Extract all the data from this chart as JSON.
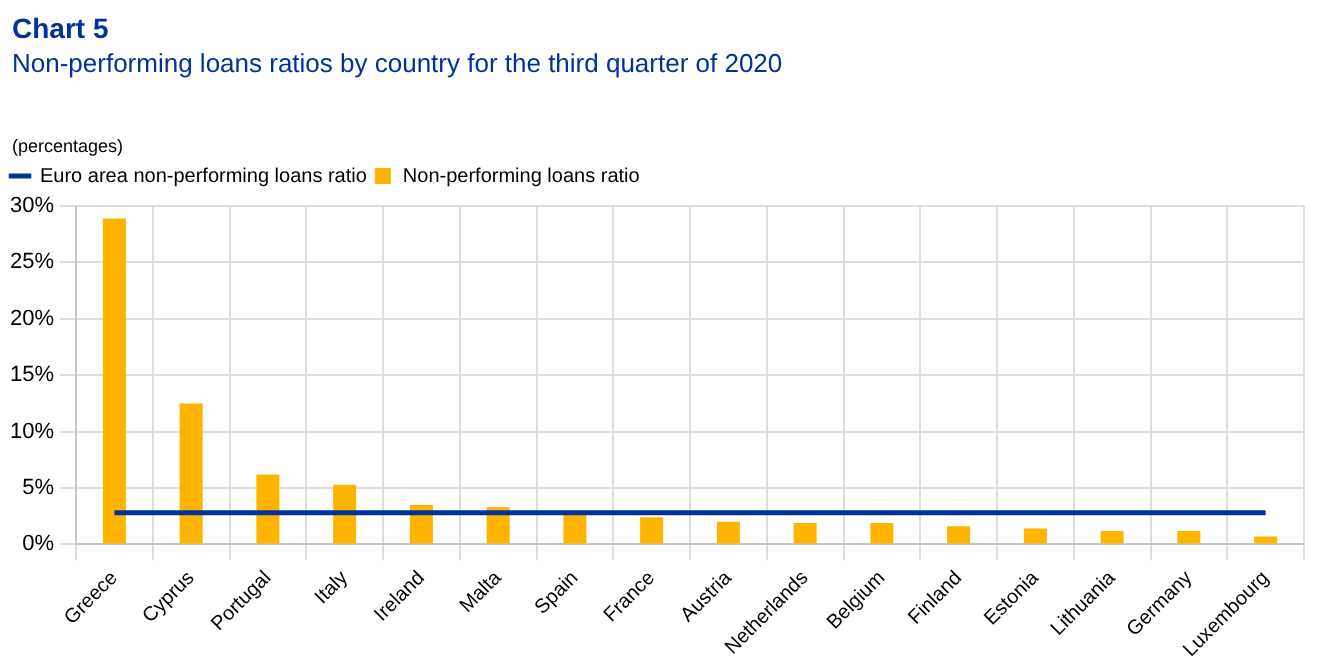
{
  "chart_data": {
    "type": "bar",
    "title": "Chart 5",
    "subtitle": "Non-performing loans ratios by country for the third quarter of 2020",
    "annotations": [
      "(percentages)"
    ],
    "categories": [
      "Greece",
      "Cyprus",
      "Portugal",
      "Italy",
      "Ireland",
      "Malta",
      "Spain",
      "France",
      "Austria",
      "Netherlands",
      "Belgium",
      "Finland",
      "Estonia",
      "Lithuania",
      "Germany",
      "Luxembourg"
    ],
    "series": [
      {
        "name": "Euro area non-performing loans ratio",
        "type": "line",
        "color": "#003299",
        "values": [
          2.8,
          2.8,
          2.8,
          2.8,
          2.8,
          2.8,
          2.8,
          2.8,
          2.8,
          2.8,
          2.8,
          2.8,
          2.8,
          2.8,
          2.8,
          2.8
        ]
      },
      {
        "name": "Non-performing loans ratio",
        "color": "#ffb400",
        "values": [
          28.9,
          12.5,
          6.2,
          5.3,
          3.5,
          3.3,
          2.8,
          2.4,
          2.0,
          1.9,
          1.9,
          1.6,
          1.4,
          1.2,
          1.2,
          0.7
        ]
      }
    ],
    "ylim": [
      0,
      30
    ],
    "yticks": [
      {
        "value": 0,
        "label": "0%"
      },
      {
        "value": 5,
        "label": "5%"
      },
      {
        "value": 10,
        "label": "10%"
      },
      {
        "value": 15,
        "label": "15%"
      },
      {
        "value": 20,
        "label": "20%"
      },
      {
        "value": 25,
        "label": "25%"
      },
      {
        "value": 30,
        "label": "30%"
      }
    ],
    "grid": true,
    "legend": "top left",
    "marker": "none"
  }
}
